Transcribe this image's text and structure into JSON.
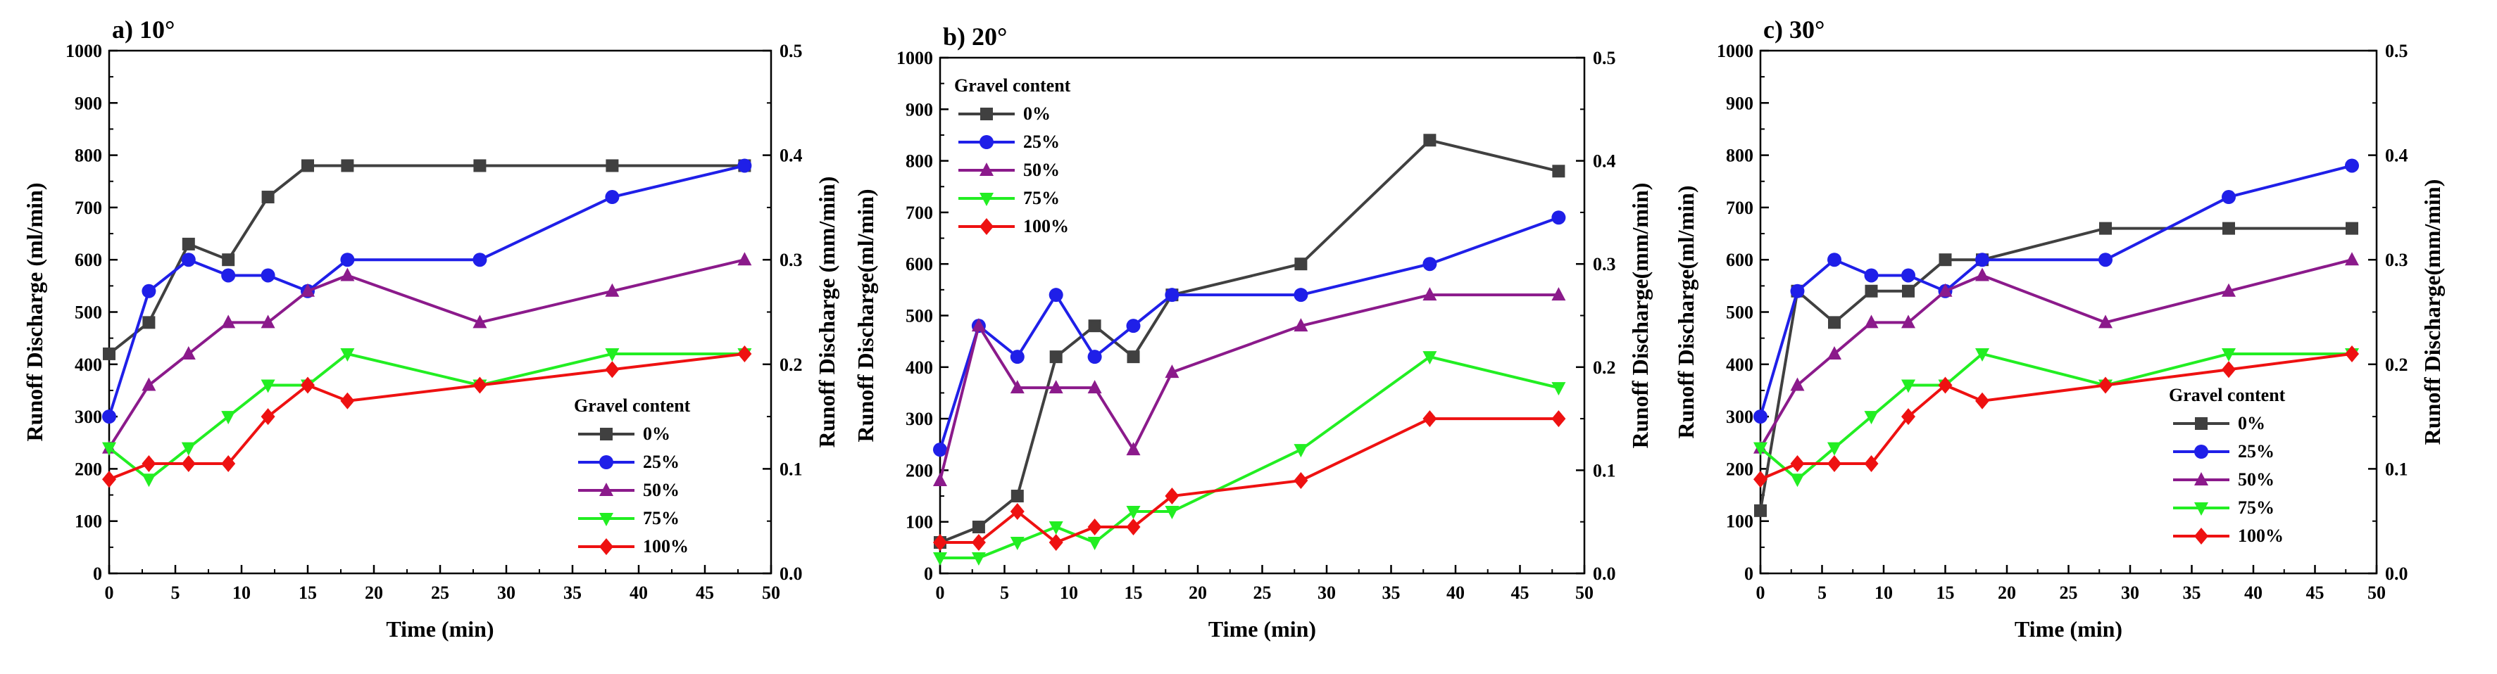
{
  "chart_data": [
    {
      "type": "line",
      "title": "a) 10°",
      "xlabel": "Time (min)",
      "ylabel": "Runoff Discharge (ml/min)",
      "ylabel_right": "Runoff Discharge (mm/min)",
      "xlim": [
        0,
        50
      ],
      "ylim": [
        0,
        1000
      ],
      "ylim_right": [
        0,
        0.5
      ],
      "xticks": [
        0,
        5,
        10,
        15,
        20,
        25,
        30,
        35,
        40,
        45,
        50
      ],
      "yticks": [
        0,
        100,
        200,
        300,
        400,
        500,
        600,
        700,
        800,
        900,
        1000
      ],
      "yticks_right": [
        0.0,
        0.1,
        0.2,
        0.3,
        0.4,
        0.5
      ],
      "legend_title": "Gravel content",
      "legend_position": "bottom-right",
      "series": [
        {
          "name": "0%",
          "color": "#404040",
          "marker": "square",
          "x": [
            0,
            3,
            6,
            9,
            12,
            15,
            18,
            28,
            38,
            48
          ],
          "y": [
            420,
            480,
            630,
            600,
            720,
            780,
            780,
            780,
            780,
            780
          ]
        },
        {
          "name": "25%",
          "color": "#1f1fe8",
          "marker": "circle",
          "x": [
            0,
            3,
            6,
            9,
            12,
            15,
            18,
            28,
            38,
            48
          ],
          "y": [
            300,
            540,
            600,
            570,
            570,
            540,
            600,
            600,
            720,
            780
          ]
        },
        {
          "name": "50%",
          "color": "#8b1a8b",
          "marker": "triangle-up",
          "x": [
            0,
            3,
            6,
            9,
            12,
            15,
            18,
            28,
            38,
            48
          ],
          "y": [
            240,
            360,
            420,
            480,
            480,
            540,
            570,
            480,
            540,
            600
          ]
        },
        {
          "name": "75%",
          "color": "#22ee22",
          "marker": "triangle-down",
          "x": [
            0,
            3,
            6,
            9,
            12,
            15,
            18,
            28,
            38,
            48
          ],
          "y": [
            240,
            180,
            240,
            300,
            360,
            360,
            420,
            360,
            420,
            420
          ]
        },
        {
          "name": "100%",
          "color": "#ee1111",
          "marker": "diamond",
          "x": [
            0,
            3,
            6,
            9,
            12,
            15,
            18,
            28,
            38,
            48
          ],
          "y": [
            180,
            210,
            210,
            210,
            300,
            360,
            330,
            360,
            390,
            420
          ]
        }
      ]
    },
    {
      "type": "line",
      "title": "b) 20°",
      "xlabel": "Time (min)",
      "ylabel": "Runoff Discharge(ml/min)",
      "ylabel_right": "Runoff Discharge(mm/min)",
      "xlim": [
        0,
        50
      ],
      "ylim": [
        0,
        1000
      ],
      "ylim_right": [
        0,
        0.5
      ],
      "xticks": [
        0,
        5,
        10,
        15,
        20,
        25,
        30,
        35,
        40,
        45,
        50
      ],
      "yticks": [
        0,
        100,
        200,
        300,
        400,
        500,
        600,
        700,
        800,
        900,
        1000
      ],
      "yticks_right": [
        0.0,
        0.1,
        0.2,
        0.3,
        0.4,
        0.5
      ],
      "legend_title": "Gravel content",
      "legend_position": "top-left",
      "series": [
        {
          "name": "0%",
          "color": "#404040",
          "marker": "square",
          "x": [
            0,
            3,
            6,
            9,
            12,
            15,
            18,
            28,
            38,
            48
          ],
          "y": [
            60,
            90,
            150,
            420,
            480,
            420,
            540,
            600,
            840,
            780
          ]
        },
        {
          "name": "25%",
          "color": "#1f1fe8",
          "marker": "circle",
          "x": [
            0,
            3,
            6,
            9,
            12,
            15,
            18,
            28,
            38,
            48
          ],
          "y": [
            240,
            480,
            420,
            540,
            420,
            480,
            540,
            540,
            600,
            690
          ]
        },
        {
          "name": "50%",
          "color": "#8b1a8b",
          "marker": "triangle-up",
          "x": [
            0,
            3,
            6,
            9,
            12,
            15,
            18,
            28,
            38,
            48
          ],
          "y": [
            180,
            480,
            360,
            360,
            360,
            240,
            390,
            480,
            540,
            540
          ]
        },
        {
          "name": "75%",
          "color": "#22ee22",
          "marker": "triangle-down",
          "x": [
            0,
            3,
            6,
            9,
            12,
            15,
            18,
            28,
            38,
            48
          ],
          "y": [
            30,
            30,
            60,
            90,
            60,
            120,
            120,
            240,
            420,
            360
          ]
        },
        {
          "name": "100%",
          "color": "#ee1111",
          "marker": "diamond",
          "x": [
            0,
            3,
            6,
            9,
            12,
            15,
            18,
            28,
            38,
            48
          ],
          "y": [
            60,
            60,
            120,
            60,
            90,
            90,
            150,
            180,
            300,
            300
          ]
        }
      ]
    },
    {
      "type": "line",
      "title": "c) 30°",
      "xlabel": "Time (min)",
      "ylabel": "Runoff  Discharge(ml/min)",
      "ylabel_right": "Runoff Discharge(mm/min)",
      "xlim": [
        0,
        50
      ],
      "ylim": [
        0,
        1000
      ],
      "ylim_right": [
        0,
        0.5
      ],
      "xticks": [
        0,
        5,
        10,
        15,
        20,
        25,
        30,
        35,
        40,
        45,
        50
      ],
      "yticks": [
        0,
        100,
        200,
        300,
        400,
        500,
        600,
        700,
        800,
        900,
        1000
      ],
      "yticks_right": [
        0.0,
        0.1,
        0.2,
        0.3,
        0.4,
        0.5
      ],
      "legend_title": "Gravel content",
      "legend_position": "bottom-right",
      "series": [
        {
          "name": "0%",
          "color": "#404040",
          "marker": "square",
          "x": [
            0,
            3,
            6,
            9,
            12,
            15,
            18,
            28,
            38,
            48
          ],
          "y": [
            120,
            540,
            480,
            540,
            540,
            600,
            600,
            660,
            660,
            660
          ]
        },
        {
          "name": "25%",
          "color": "#1f1fe8",
          "marker": "circle",
          "x": [
            0,
            3,
            6,
            9,
            12,
            15,
            18,
            28,
            38,
            48
          ],
          "y": [
            300,
            540,
            600,
            570,
            570,
            540,
            600,
            600,
            720,
            780
          ]
        },
        {
          "name": "50%",
          "color": "#8b1a8b",
          "marker": "triangle-up",
          "x": [
            0,
            3,
            6,
            9,
            12,
            15,
            18,
            28,
            38,
            48
          ],
          "y": [
            240,
            360,
            420,
            480,
            480,
            540,
            570,
            480,
            540,
            600
          ]
        },
        {
          "name": "75%",
          "color": "#22ee22",
          "marker": "triangle-down",
          "x": [
            0,
            3,
            6,
            9,
            12,
            15,
            18,
            28,
            38,
            48
          ],
          "y": [
            240,
            180,
            240,
            300,
            360,
            360,
            420,
            360,
            420,
            420
          ]
        },
        {
          "name": "100%",
          "color": "#ee1111",
          "marker": "diamond",
          "x": [
            0,
            3,
            6,
            9,
            12,
            15,
            18,
            28,
            38,
            48
          ],
          "y": [
            180,
            210,
            210,
            210,
            300,
            360,
            330,
            360,
            390,
            420
          ]
        }
      ]
    }
  ]
}
